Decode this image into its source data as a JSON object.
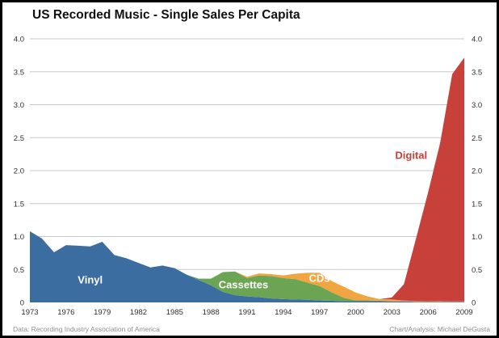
{
  "title": "US Recorded Music - Single Sales Per Capita",
  "footer": {
    "left": "Data: Recording Industry Association of America",
    "right": "Chart/Analysis: Michael DeGusta"
  },
  "colors": {
    "vinyl": "#3c6da1",
    "cassettes": "#6ba453",
    "cds": "#f0a540",
    "digital": "#c7403a",
    "grid": "#c9c9c9",
    "title_text": "#111111",
    "tick_text": "#2e2e2e",
    "footer_text": "#8e8e8e",
    "frame": "#000000",
    "background": "#ffffff"
  },
  "chart_data": {
    "type": "area",
    "stacked": true,
    "title": "US Recorded Music - Single Sales Per Capita",
    "xlabel": "",
    "ylabel": "",
    "grid": true,
    "legend": "inline-area-labels",
    "x_range": [
      1973,
      2009
    ],
    "ylim": [
      0,
      4.0
    ],
    "dual_y_axis": true,
    "y_tick_labels": [
      "4.0",
      "3.5",
      "3.0",
      "2.5",
      "2.0",
      "1.5",
      "1.0",
      "0.5",
      "0"
    ],
    "x_tick_labels": [
      "1973",
      "1976",
      "1979",
      "1982",
      "1985",
      "1988",
      "1991",
      "1994",
      "1997",
      "2000",
      "2003",
      "2006",
      "2009"
    ],
    "years": [
      1973,
      1974,
      1975,
      1976,
      1977,
      1978,
      1979,
      1980,
      1981,
      1982,
      1983,
      1984,
      1985,
      1986,
      1987,
      1988,
      1989,
      1990,
      1991,
      1992,
      1993,
      1994,
      1995,
      1996,
      1997,
      1998,
      1999,
      2000,
      2001,
      2002,
      2003,
      2004,
      2005,
      2006,
      2007,
      2008,
      2009
    ],
    "series": [
      {
        "name": "Vinyl",
        "color": "#3c6da1",
        "label": {
          "year": 1978.0,
          "value": 0.29,
          "color": "#ffffff"
        },
        "values": [
          1.08,
          0.97,
          0.76,
          0.87,
          0.86,
          0.85,
          0.92,
          0.72,
          0.67,
          0.6,
          0.53,
          0.56,
          0.52,
          0.42,
          0.34,
          0.26,
          0.16,
          0.11,
          0.09,
          0.08,
          0.06,
          0.05,
          0.045,
          0.04,
          0.03,
          0.025,
          0.02,
          0.02,
          0.02,
          0.02,
          0.015,
          0.015,
          0.01,
          0.01,
          0.01,
          0.01,
          0.01
        ]
      },
      {
        "name": "Cassettes",
        "color": "#6ba453",
        "label": {
          "year": 1990.7,
          "value": 0.215,
          "color": "#ffffff"
        },
        "values": [
          0,
          0,
          0,
          0,
          0,
          0,
          0,
          0,
          0,
          0,
          0,
          0,
          0,
          0,
          0.02,
          0.1,
          0.3,
          0.36,
          0.28,
          0.33,
          0.34,
          0.32,
          0.31,
          0.26,
          0.22,
          0.13,
          0.05,
          0.01,
          0.01,
          0.005,
          0,
          0,
          0,
          0,
          0,
          0,
          0
        ]
      },
      {
        "name": "CDs",
        "color": "#f0a540",
        "label": {
          "year": 1997.0,
          "value": 0.31,
          "color": "#ffffff"
        },
        "values": [
          0,
          0,
          0,
          0,
          0,
          0,
          0,
          0,
          0,
          0,
          0,
          0,
          0,
          0,
          0,
          0,
          0,
          0,
          0.02,
          0.03,
          0.03,
          0.04,
          0.08,
          0.15,
          0.2,
          0.17,
          0.17,
          0.12,
          0.06,
          0.025,
          0.03,
          0.012,
          0.01,
          0.008,
          0.01,
          0.005,
          0.005
        ]
      },
      {
        "name": "Digital",
        "color": "#c7403a",
        "label": {
          "year": 2004.6,
          "value": 2.18,
          "color": "#c7403a"
        },
        "values": [
          0,
          0,
          0,
          0,
          0,
          0,
          0,
          0,
          0,
          0,
          0,
          0,
          0,
          0,
          0,
          0,
          0,
          0,
          0,
          0,
          0,
          0,
          0,
          0,
          0,
          0,
          0,
          0,
          0,
          0,
          0.03,
          0.25,
          0.95,
          1.65,
          2.4,
          3.45,
          3.7
        ]
      }
    ]
  }
}
